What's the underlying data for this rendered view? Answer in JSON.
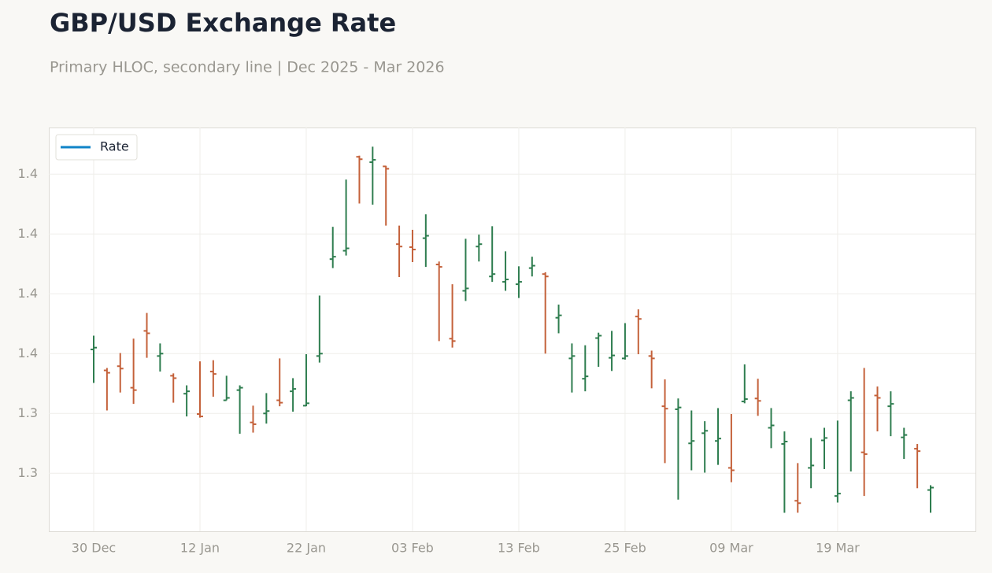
{
  "chart_data": {
    "type": "ohlc",
    "title": "GBP/USD Exchange Rate",
    "subtitle": "Primary HLOC, secondary line | Dec 2025 - Mar 2026",
    "categories": [
      "30 Dec",
      null,
      null,
      null,
      null,
      null,
      null,
      null,
      "12 Jan",
      null,
      null,
      null,
      null,
      null,
      null,
      null,
      "22 Jan",
      null,
      null,
      null,
      null,
      null,
      null,
      null,
      "03 Feb",
      null,
      null,
      null,
      null,
      null,
      null,
      null,
      "13 Feb",
      null,
      null,
      null,
      null,
      null,
      null,
      null,
      "25 Feb",
      null,
      null,
      null,
      null,
      null,
      null,
      null,
      "09 Mar",
      null,
      null,
      null,
      null,
      null,
      null,
      null,
      "19 Mar",
      null,
      null,
      null,
      null,
      null,
      null,
      null
    ],
    "series": [
      {
        "name": "Rate",
        "color": "#0f84c8",
        "open": [
          1.3507,
          1.3472,
          1.3479,
          1.3443,
          1.3538,
          1.3496,
          1.3463,
          1.3433,
          1.3399,
          1.347,
          1.3422,
          1.3439,
          1.3385,
          1.34,
          1.3422,
          1.3437,
          1.3413,
          1.3496,
          1.3658,
          1.3672,
          1.3829,
          1.382,
          1.3813,
          1.3683,
          1.3678,
          1.3693,
          1.3649,
          1.3525,
          1.3605,
          1.3679,
          1.3629,
          1.362,
          1.3616,
          1.3643,
          1.3633,
          1.356,
          1.3492,
          1.3458,
          1.3526,
          1.3493,
          1.3492,
          1.3562,
          1.3496,
          1.3412,
          1.3407,
          1.335,
          1.3367,
          1.3354,
          1.3309,
          1.342,
          1.3425,
          1.3376,
          1.3349,
          1.3254,
          1.3309,
          1.3355,
          1.3262,
          1.3422,
          1.3335,
          1.343,
          1.3412,
          1.336,
          1.3341,
          1.3272
        ],
        "high": [
          1.353,
          1.3476,
          1.3501,
          1.3525,
          1.3568,
          1.3517,
          1.3467,
          1.3447,
          1.3487,
          1.3489,
          1.3463,
          1.3447,
          1.3413,
          1.3434,
          1.3492,
          1.3459,
          1.3499,
          1.3597,
          1.3712,
          1.3791,
          1.3831,
          1.3846,
          1.3814,
          1.3714,
          1.3707,
          1.3733,
          1.3654,
          1.3616,
          1.3692,
          1.3699,
          1.3713,
          1.3671,
          1.3646,
          1.3662,
          1.3636,
          1.3582,
          1.3517,
          1.3514,
          1.3535,
          1.3538,
          1.3551,
          1.3574,
          1.3505,
          1.3457,
          1.3425,
          1.3405,
          1.3387,
          1.3409,
          1.3399,
          1.3482,
          1.3458,
          1.3409,
          1.337,
          1.3317,
          1.3359,
          1.3376,
          1.3388,
          1.3437,
          1.3476,
          1.3445,
          1.3437,
          1.3376,
          1.3349,
          1.328
        ],
        "low": [
          1.3451,
          1.3405,
          1.3435,
          1.3416,
          1.3493,
          1.347,
          1.3418,
          1.3395,
          1.3393,
          1.3428,
          1.3422,
          1.3366,
          1.3368,
          1.3383,
          1.3412,
          1.3403,
          1.3412,
          1.3485,
          1.3643,
          1.3664,
          1.3751,
          1.3749,
          1.3714,
          1.3628,
          1.3653,
          1.3645,
          1.3521,
          1.351,
          1.3588,
          1.3654,
          1.362,
          1.3605,
          1.3593,
          1.3629,
          1.35,
          1.3534,
          1.3435,
          1.3437,
          1.3478,
          1.3471,
          1.349,
          1.3499,
          1.3442,
          1.3317,
          1.3256,
          1.3305,
          1.3301,
          1.3314,
          1.3285,
          1.3417,
          1.3396,
          1.3342,
          1.3234,
          1.3234,
          1.3275,
          1.3307,
          1.3251,
          1.3303,
          1.3262,
          1.337,
          1.3362,
          1.3324,
          1.3275,
          1.3234
        ],
        "close": [
          1.351,
          1.3468,
          1.3475,
          1.3439,
          1.3534,
          1.35,
          1.3459,
          1.3437,
          1.3395,
          1.3466,
          1.3426,
          1.3443,
          1.3382,
          1.3404,
          1.3418,
          1.3441,
          1.3417,
          1.35,
          1.3662,
          1.3676,
          1.3825,
          1.3824,
          1.3809,
          1.3679,
          1.3674,
          1.3697,
          1.3645,
          1.3521,
          1.3609,
          1.3683,
          1.3633,
          1.3624,
          1.362,
          1.3647,
          1.3629,
          1.3564,
          1.3496,
          1.3462,
          1.353,
          1.3497,
          1.3496,
          1.3558,
          1.3492,
          1.3408,
          1.341,
          1.3354,
          1.3371,
          1.3358,
          1.3305,
          1.3424,
          1.3421,
          1.338,
          1.3353,
          1.325,
          1.3313,
          1.3359,
          1.3266,
          1.3426,
          1.3332,
          1.3426,
          1.3416,
          1.3364,
          1.3337,
          1.3276
        ]
      }
    ],
    "up_color": "#2e7d4f",
    "down_color": "#c4613a",
    "ylim": [
      1.3203,
      1.3878
    ],
    "yticks": [
      {
        "value": 1.33,
        "label": "1.3"
      },
      {
        "value": 1.34,
        "label": "1.3"
      },
      {
        "value": 1.35,
        "label": "1.4"
      },
      {
        "value": 1.36,
        "label": "1.4"
      },
      {
        "value": 1.37,
        "label": "1.4"
      },
      {
        "value": 1.38,
        "label": "1.4"
      }
    ],
    "grid": true,
    "legend": "upper left"
  }
}
